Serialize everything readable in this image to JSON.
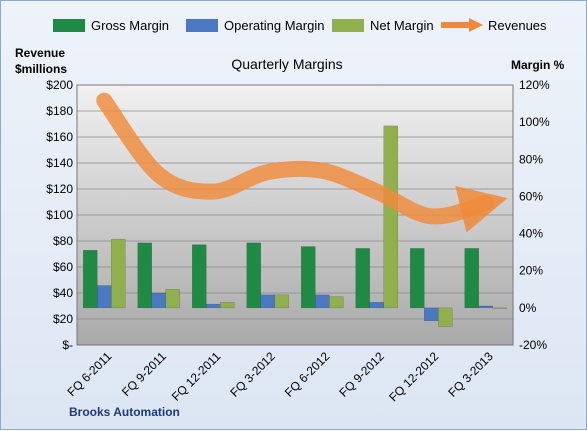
{
  "chart_data": {
    "type": "bar",
    "title": "Quarterly Margins",
    "caption": "Brooks Automation",
    "y_left_label_line1": "Revenue",
    "y_left_label_line2": "$millions",
    "y_right_label": "Margin %",
    "categories": [
      "FQ 6-2011",
      "FQ 9-2011",
      "FQ 12-2011",
      "FQ 3-2012",
      "FQ 6-2012",
      "FQ 9-2012",
      "FQ 12-2012",
      "FQ 3-2013"
    ],
    "left_axis": {
      "min": 0,
      "max": 200,
      "step": 20,
      "tick_labels": [
        "$-",
        "$20",
        "$40",
        "$60",
        "$80",
        "$100",
        "$120",
        "$140",
        "$160",
        "$180",
        "$200"
      ]
    },
    "right_axis": {
      "min": -20,
      "max": 120,
      "step": 20,
      "tick_labels": [
        "-20%",
        "0%",
        "20%",
        "40%",
        "60%",
        "80%",
        "100%",
        "120%"
      ]
    },
    "series": [
      {
        "name": "Gross Margin",
        "axis": "right",
        "kind": "bar",
        "color": "#1f8a43",
        "values": [
          31,
          35,
          34,
          35,
          33,
          32,
          32,
          32
        ]
      },
      {
        "name": "Operating Margin",
        "axis": "right",
        "kind": "bar",
        "color": "#4a78c2",
        "values": [
          12,
          8,
          2,
          7,
          7,
          3,
          -7,
          1
        ]
      },
      {
        "name": "Net Margin",
        "axis": "right",
        "kind": "bar",
        "color": "#8fb04c",
        "values": [
          37,
          10,
          3,
          7,
          6,
          98,
          -10,
          0
        ]
      },
      {
        "name": "Revenues",
        "axis": "left",
        "kind": "line",
        "color": "#f08a3a",
        "values": [
          188,
          131,
          118,
          133,
          134,
          118,
          99,
          109
        ]
      }
    ],
    "grid": true,
    "legend_position": "top"
  }
}
